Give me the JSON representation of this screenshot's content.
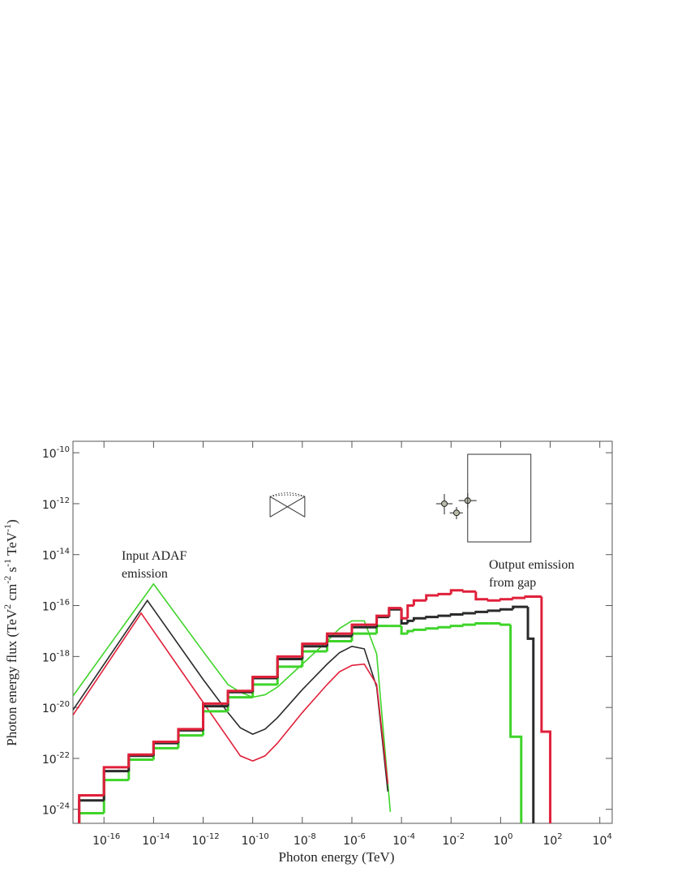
{
  "chart_data": {
    "type": "line",
    "xlabel": "Photon energy (TeV)",
    "ylabel": [
      {
        "text": "Photon energy flux (TeV"
      },
      {
        "text": "2",
        "sup": true
      },
      {
        "text": " cm"
      },
      {
        "text": "-2",
        "sup": true
      },
      {
        "text": " s"
      },
      {
        "text": "-1",
        "sup": true
      },
      {
        "text": " TeV"
      },
      {
        "text": "-1",
        "sup": true
      },
      {
        "text": ")"
      }
    ],
    "log_x": true,
    "log_y": true,
    "xlim": [
      5.62e-18,
      31600.0
    ],
    "ylim": [
      2.82e-25,
      2.82e-10
    ],
    "xticks": [
      {
        "value": 1e-16,
        "label": "10",
        "exponent": "-16"
      },
      {
        "value": 1e-14,
        "label": "10",
        "exponent": "-14"
      },
      {
        "value": 1e-12,
        "label": "10",
        "exponent": "-12"
      },
      {
        "value": 1e-10,
        "label": "10",
        "exponent": "-10"
      },
      {
        "value": 1e-08,
        "label": "10",
        "exponent": "-8"
      },
      {
        "value": 1e-06,
        "label": "10",
        "exponent": "-6"
      },
      {
        "value": 0.0001,
        "label": "10",
        "exponent": "-4"
      },
      {
        "value": 0.01,
        "label": "10",
        "exponent": "-2"
      },
      {
        "value": 1,
        "label": "10",
        "exponent": "0"
      },
      {
        "value": 100,
        "label": "10",
        "exponent": "2"
      },
      {
        "value": 10000,
        "label": "10",
        "exponent": "4"
      }
    ],
    "yticks": [
      {
        "value": 1e-10,
        "label": "10",
        "exponent": "-10"
      },
      {
        "value": 1e-12,
        "label": "10",
        "exponent": "-12"
      },
      {
        "value": 1e-14,
        "label": "10",
        "exponent": "-14"
      },
      {
        "value": 1e-16,
        "label": "10",
        "exponent": "-16"
      },
      {
        "value": 1e-18,
        "label": "10",
        "exponent": "-18"
      },
      {
        "value": 1e-20,
        "label": "10",
        "exponent": "-20"
      },
      {
        "value": 1e-22,
        "label": "10",
        "exponent": "-22"
      },
      {
        "value": 1e-24,
        "label": "10",
        "exponent": "-24"
      }
    ],
    "series": [
      {
        "type": "line",
        "color": "#3fd42a",
        "x": [
          5.62e-18,
          1e-14,
          1e-12,
          1e-11,
          3.16e-11,
          1e-10,
          3.16e-10,
          1e-09,
          1e-08,
          1e-07,
          3.16e-07,
          1e-06,
          3.16e-06,
          1e-05,
          3.55e-05
        ],
        "values": [
          2.82e-20,
          7.08e-16,
          1.585e-18,
          7.94e-20,
          3.98e-20,
          2.51e-20,
          3.16e-20,
          6.31e-20,
          5.01e-19,
          3.98e-18,
          1.259e-17,
          2.51e-17,
          2.51e-17,
          1.259e-18,
          7.94e-25
        ]
      },
      {
        "type": "line",
        "color": "#2a2a2a",
        "x": [
          5.62e-18,
          5.62e-15,
          1e-12,
          1e-11,
          3.16e-11,
          1e-10,
          3.16e-10,
          1e-09,
          1e-08,
          1e-07,
          3.16e-07,
          1e-06,
          3.16e-06,
          1e-05,
          2.82e-05
        ],
        "values": [
          7.94e-21,
          1.585e-16,
          1.259e-19,
          6.31e-21,
          1.585e-21,
          8.91e-22,
          1.413e-21,
          3.98e-21,
          5.01e-20,
          5.01e-19,
          1.413e-18,
          2.51e-18,
          2e-18,
          6.31e-20,
          5.01e-24
        ]
      },
      {
        "type": "line",
        "color": "#e0203a",
        "x": [
          5.62e-18,
          3.16e-15,
          1e-12,
          1e-11,
          3.16e-11,
          1e-10,
          3.16e-10,
          1e-09,
          1e-08,
          1e-07,
          3.16e-07,
          1e-06,
          3.16e-06,
          1e-05,
          2.82e-05
        ],
        "values": [
          5.01e-21,
          5.01e-17,
          1.585e-20,
          6.31e-22,
          1.259e-22,
          7.94e-23,
          1.259e-22,
          3.98e-22,
          6.31e-21,
          7.94e-20,
          2.51e-19,
          4.47e-19,
          5.01e-19,
          7.94e-20,
          1e-23
        ]
      },
      {
        "type": "histogram",
        "color": "#3fd42a",
        "bins": [
          1e-17,
          1e-16,
          1e-15,
          1e-14,
          1e-13,
          1e-12,
          1e-11,
          1e-10,
          1e-09,
          1e-08,
          1e-07,
          1e-06,
          1e-05,
          3.16e-05,
          0.0001,
          0.0001778,
          0.000316,
          0.001,
          0.00316,
          0.01,
          0.0316,
          0.1,
          0.316,
          1,
          2.51,
          6.76
        ],
        "values": [
          7.08e-25,
          1.413e-23,
          8.91e-23,
          2.51e-22,
          7.94e-22,
          7.08e-21,
          2.51e-20,
          7.94e-20,
          3.98e-19,
          1.585e-18,
          3.98e-18,
          7.94e-18,
          1.585e-17,
          1.585e-17,
          7.94e-18,
          1e-17,
          1.122e-17,
          1.259e-17,
          1.413e-17,
          1.585e-17,
          1.778e-17,
          2e-17,
          2e-17,
          1.778e-17,
          7.08e-22
        ]
      },
      {
        "type": "histogram",
        "color": "#2a2a2a",
        "bins": [
          1e-17,
          1e-16,
          1e-15,
          1e-14,
          1e-13,
          1e-12,
          1e-11,
          1e-10,
          1e-09,
          1e-08,
          1e-07,
          1e-06,
          1e-05,
          3.16e-05,
          0.0001,
          0.0001778,
          0.000316,
          0.001,
          0.00316,
          0.01,
          0.0316,
          0.1,
          0.316,
          1,
          3.16,
          12.6,
          20.9
        ],
        "values": [
          2.24e-24,
          3.16e-23,
          1.259e-22,
          3.98e-22,
          1.259e-21,
          1.122e-20,
          3.98e-20,
          1.413e-19,
          7.94e-19,
          2.51e-18,
          6.31e-18,
          1.413e-17,
          3.55e-17,
          7.08e-17,
          2e-17,
          2.51e-17,
          3.16e-17,
          3.55e-17,
          3.98e-17,
          4.47e-17,
          5.01e-17,
          5.62e-17,
          6.31e-17,
          7.08e-17,
          8.91e-17,
          5.01e-18
        ]
      },
      {
        "type": "histogram",
        "color": "#e0203a",
        "bins": [
          1e-17,
          1e-16,
          1e-15,
          1e-14,
          1e-13,
          1e-12,
          1e-11,
          1e-10,
          1e-09,
          1e-08,
          1e-07,
          1e-06,
          1e-05,
          3.16e-05,
          0.0001,
          0.0001778,
          0.000316,
          0.001,
          0.00316,
          0.01,
          0.0316,
          0.1,
          0.316,
          1,
          3.16,
          10,
          44.7,
          100
        ],
        "values": [
          3.55e-24,
          4.47e-23,
          1.413e-22,
          4.47e-22,
          1.413e-21,
          1.413e-20,
          4.47e-20,
          1.585e-19,
          1e-18,
          3.16e-18,
          7.94e-18,
          1.778e-17,
          3.98e-17,
          7.94e-17,
          3.16e-17,
          1e-16,
          1.585e-16,
          2.51e-16,
          2.82e-16,
          3.98e-16,
          3.55e-16,
          1.778e-16,
          1.585e-16,
          1.778e-16,
          2e-16,
          2.24e-16,
          1.122e-21
        ]
      }
    ],
    "bowtie": {
      "x": [
        5.01e-10,
        1.259e-08
      ],
      "y_high": 1.905e-12,
      "y_low": 3.02e-13
    },
    "points": [
      {
        "x": 0.00537,
        "y": 1e-12,
        "xlow": 0.00251,
        "xhigh": 0.0115,
        "ylow": 3.8e-13,
        "yhigh": 2.4e-12
      },
      {
        "x": 0.0166,
        "y": 4.37e-13,
        "xlow": 0.0089,
        "xhigh": 0.03,
        "ylow": 2.45e-13,
        "yhigh": 7.4e-13
      },
      {
        "x": 0.0468,
        "y": 1.32e-12,
        "xlow": 0.0204,
        "xhigh": 0.107,
        "ylow": 6.8e-13,
        "yhigh": 2.57e-12
      }
    ],
    "box": {
      "x": [
        0.0468,
        16.6
      ],
      "y": [
        3.16e-14,
        8.7e-11
      ]
    },
    "annotations": [
      {
        "lines": [
          "Input ADAF",
          "emission"
        ]
      },
      {
        "lines": [
          "Output emission",
          "from gap"
        ]
      }
    ]
  }
}
